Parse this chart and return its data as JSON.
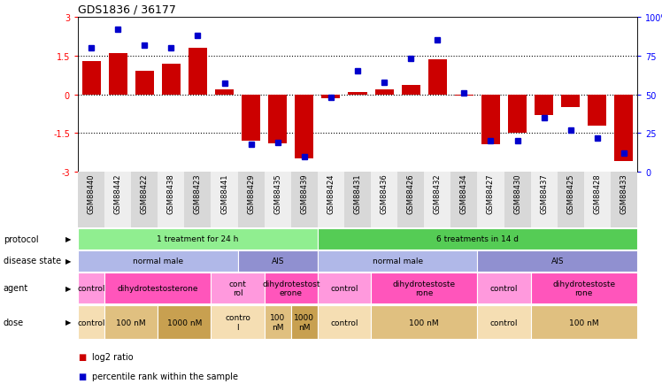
{
  "title": "GDS1836 / 36177",
  "samples": [
    "GSM88440",
    "GSM88442",
    "GSM88422",
    "GSM88438",
    "GSM88423",
    "GSM88441",
    "GSM88429",
    "GSM88435",
    "GSM88439",
    "GSM88424",
    "GSM88431",
    "GSM88436",
    "GSM88426",
    "GSM88432",
    "GSM88434",
    "GSM88427",
    "GSM88430",
    "GSM88437",
    "GSM88425",
    "GSM88428",
    "GSM88433"
  ],
  "log2_ratio": [
    1.3,
    1.6,
    0.9,
    1.2,
    1.8,
    0.2,
    -1.8,
    -1.9,
    -2.5,
    -0.15,
    0.1,
    0.2,
    0.35,
    1.35,
    -0.05,
    -1.95,
    -1.5,
    -0.8,
    -0.5,
    -1.2,
    -2.6
  ],
  "percentile": [
    80,
    92,
    82,
    80,
    88,
    57,
    18,
    19,
    10,
    48,
    65,
    58,
    73,
    85,
    51,
    20,
    20,
    35,
    27,
    22,
    12
  ],
  "bar_color": "#cc0000",
  "dot_color": "#0000cc",
  "ylim": [
    -3,
    3
  ],
  "y2lim": [
    0,
    100
  ],
  "protocol_groups": [
    {
      "label": "1 treatment for 24 h",
      "start": 0,
      "end": 8,
      "color": "#90ee90"
    },
    {
      "label": "6 treatments in 14 d",
      "start": 9,
      "end": 20,
      "color": "#55cc55"
    }
  ],
  "disease_groups": [
    {
      "label": "normal male",
      "start": 0,
      "end": 5,
      "color": "#b0b8e8"
    },
    {
      "label": "AIS",
      "start": 6,
      "end": 8,
      "color": "#9090d0"
    },
    {
      "label": "normal male",
      "start": 9,
      "end": 14,
      "color": "#b0b8e8"
    },
    {
      "label": "AIS",
      "start": 15,
      "end": 20,
      "color": "#9090d0"
    }
  ],
  "agent_groups": [
    {
      "label": "control",
      "start": 0,
      "end": 0,
      "color": "#ff99dd"
    },
    {
      "label": "dihydrotestosterone",
      "start": 1,
      "end": 4,
      "color": "#ff55bb"
    },
    {
      "label": "cont\nrol",
      "start": 5,
      "end": 6,
      "color": "#ff99dd"
    },
    {
      "label": "dihydrotestost\nerone",
      "start": 7,
      "end": 8,
      "color": "#ff55bb"
    },
    {
      "label": "control",
      "start": 9,
      "end": 10,
      "color": "#ff99dd"
    },
    {
      "label": "dihydrotestoste\nrone",
      "start": 11,
      "end": 14,
      "color": "#ff55bb"
    },
    {
      "label": "control",
      "start": 15,
      "end": 16,
      "color": "#ff99dd"
    },
    {
      "label": "dihydrotestoste\nrone",
      "start": 17,
      "end": 20,
      "color": "#ff55bb"
    }
  ],
  "dose_groups": [
    {
      "label": "control",
      "start": 0,
      "end": 0,
      "color": "#f5deb3"
    },
    {
      "label": "100 nM",
      "start": 1,
      "end": 2,
      "color": "#e0c080"
    },
    {
      "label": "1000 nM",
      "start": 3,
      "end": 4,
      "color": "#c8a050"
    },
    {
      "label": "contro\nl",
      "start": 5,
      "end": 6,
      "color": "#f5deb3"
    },
    {
      "label": "100\nnM",
      "start": 7,
      "end": 7,
      "color": "#e0c080"
    },
    {
      "label": "1000\nnM",
      "start": 8,
      "end": 8,
      "color": "#c8a050"
    },
    {
      "label": "control",
      "start": 9,
      "end": 10,
      "color": "#f5deb3"
    },
    {
      "label": "100 nM",
      "start": 11,
      "end": 14,
      "color": "#e0c080"
    },
    {
      "label": "control",
      "start": 15,
      "end": 16,
      "color": "#f5deb3"
    },
    {
      "label": "100 nM",
      "start": 17,
      "end": 20,
      "color": "#e0c080"
    }
  ],
  "row_labels": [
    "protocol",
    "disease state",
    "agent",
    "dose"
  ],
  "legend_items": [
    {
      "color": "#cc0000",
      "label": "log2 ratio"
    },
    {
      "color": "#0000cc",
      "label": "percentile rank within the sample"
    }
  ],
  "sample_bg_even": "#d8d8d8",
  "sample_bg_odd": "#eeeeee"
}
